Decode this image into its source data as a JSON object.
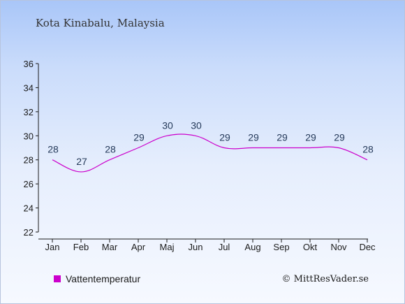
{
  "chart_data": {
    "type": "line",
    "title": "Kota Kinabalu, Malaysia",
    "categories": [
      "Jan",
      "Feb",
      "Mar",
      "Apr",
      "Maj",
      "Jun",
      "Jul",
      "Aug",
      "Sep",
      "Okt",
      "Nov",
      "Dec"
    ],
    "series": [
      {
        "name": "Vattentemperatur",
        "values": [
          28,
          27,
          28,
          29,
          30,
          30,
          29,
          29,
          29,
          29,
          29,
          28
        ],
        "color": "#cc00cc"
      }
    ],
    "ylim": [
      22,
      36
    ],
    "yticks": [
      22,
      24,
      26,
      28,
      30,
      32,
      34,
      36
    ],
    "legend_position": "bottom-left",
    "grid": false
  },
  "credit": "© MittResVader.se"
}
